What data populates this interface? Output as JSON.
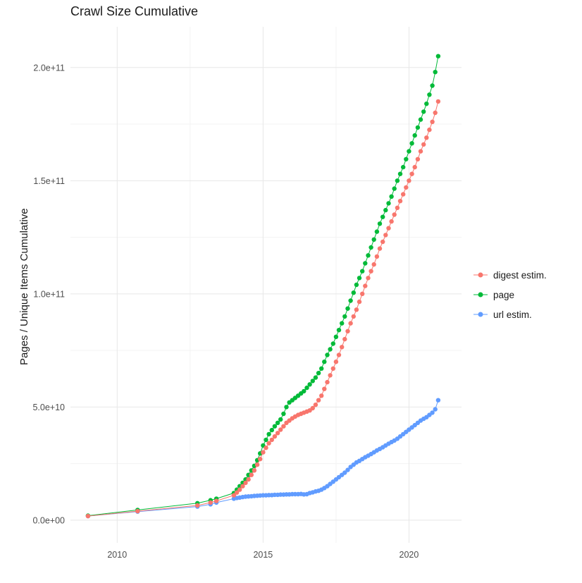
{
  "title": "Crawl Size Cumulative",
  "axes": {
    "y_label": "Pages / Unique Items Cumulative",
    "y_ticks": [
      {
        "label": "0.0e+00",
        "value_1e9": 0
      },
      {
        "label": "5.0e+10",
        "value_1e9": 50
      },
      {
        "label": "1.0e+11",
        "value_1e9": 100
      },
      {
        "label": "1.5e+11",
        "value_1e9": 150
      },
      {
        "label": "2.0e+11",
        "value_1e9": 200
      }
    ],
    "x_ticks": [
      {
        "label": "2010",
        "value": 2010
      },
      {
        "label": "2015",
        "value": 2015
      },
      {
        "label": "2020",
        "value": 2020
      }
    ]
  },
  "legend": {
    "position": "right",
    "items": [
      {
        "id": "digest",
        "label": "digest estim.",
        "color": "#F8766D"
      },
      {
        "id": "page",
        "label": "page",
        "color": "#00BA38"
      },
      {
        "id": "url",
        "label": "url estim.",
        "color": "#619CFF"
      }
    ]
  },
  "chart_data": {
    "type": "scatter",
    "style": "point+line",
    "title": "Crawl Size Cumulative",
    "xlabel": "",
    "ylabel": "Pages / Unique Items Cumulative",
    "x_unit": "year",
    "y_unit": "pages (values in units of 1e9)",
    "xlim": [
      2008.4,
      2021.8
    ],
    "ylim": [
      -10000000000.0,
      218000000000.0
    ],
    "ylim_panel_1e9": [
      -10,
      218
    ],
    "grid": "major+minor",
    "legend_position": "right",
    "x_minor": [
      2012.5,
      2017.5
    ],
    "y_minor_1e9": [
      25,
      75,
      125,
      175
    ],
    "series": [
      {
        "id": "url",
        "name": "url estim.",
        "color": "#619CFF",
        "points": [
          [
            2009.0,
            1.8
          ],
          [
            2010.7,
            3.8
          ],
          [
            2012.75,
            6.0
          ],
          [
            2013.2,
            7.0
          ],
          [
            2013.4,
            7.8
          ],
          [
            2014.0,
            9.5
          ],
          [
            2014.1,
            9.8
          ],
          [
            2014.2,
            10
          ],
          [
            2014.3,
            10.2
          ],
          [
            2014.4,
            10.4
          ],
          [
            2014.5,
            10.5
          ],
          [
            2014.6,
            10.6
          ],
          [
            2014.7,
            10.7
          ],
          [
            2014.8,
            10.8
          ],
          [
            2014.9,
            10.9
          ],
          [
            2015.0,
            11
          ],
          [
            2015.1,
            11
          ],
          [
            2015.2,
            11.1
          ],
          [
            2015.3,
            11.1
          ],
          [
            2015.4,
            11.2
          ],
          [
            2015.5,
            11.2
          ],
          [
            2015.6,
            11.3
          ],
          [
            2015.7,
            11.3
          ],
          [
            2015.8,
            11.4
          ],
          [
            2015.9,
            11.4
          ],
          [
            2016.0,
            11.5
          ],
          [
            2016.1,
            11.5
          ],
          [
            2016.2,
            11.5
          ],
          [
            2016.3,
            11.6
          ],
          [
            2016.4,
            11.4
          ],
          [
            2016.5,
            11.5
          ],
          [
            2016.6,
            12
          ],
          [
            2016.7,
            12.3
          ],
          [
            2016.8,
            12.7
          ],
          [
            2016.9,
            13
          ],
          [
            2017.0,
            13.5
          ],
          [
            2017.1,
            14.2
          ],
          [
            2017.2,
            15
          ],
          [
            2017.3,
            16
          ],
          [
            2017.4,
            17
          ],
          [
            2017.5,
            18
          ],
          [
            2017.6,
            19
          ],
          [
            2017.7,
            20
          ],
          [
            2017.8,
            21
          ],
          [
            2017.9,
            22.2
          ],
          [
            2018.0,
            23.5
          ],
          [
            2018.1,
            24.5
          ],
          [
            2018.2,
            25.5
          ],
          [
            2018.3,
            26.2
          ],
          [
            2018.4,
            27
          ],
          [
            2018.5,
            27.8
          ],
          [
            2018.6,
            28.5
          ],
          [
            2018.7,
            29.2
          ],
          [
            2018.8,
            30
          ],
          [
            2018.9,
            30.8
          ],
          [
            2019.0,
            31.5
          ],
          [
            2019.1,
            32.2
          ],
          [
            2019.2,
            33
          ],
          [
            2019.3,
            33.8
          ],
          [
            2019.4,
            34.5
          ],
          [
            2019.5,
            35.2
          ],
          [
            2019.6,
            36
          ],
          [
            2019.7,
            37
          ],
          [
            2019.8,
            38
          ],
          [
            2019.9,
            39
          ],
          [
            2020.0,
            40
          ],
          [
            2020.1,
            41
          ],
          [
            2020.2,
            42
          ],
          [
            2020.3,
            43
          ],
          [
            2020.4,
            44
          ],
          [
            2020.5,
            44.8
          ],
          [
            2020.6,
            45.5
          ],
          [
            2020.7,
            46.5
          ],
          [
            2020.8,
            47.5
          ],
          [
            2020.9,
            49
          ],
          [
            2021.0,
            53
          ]
        ]
      },
      {
        "id": "page",
        "name": "page",
        "color": "#00BA38",
        "points": [
          [
            2009.0,
            2.0
          ],
          [
            2010.7,
            4.5
          ],
          [
            2012.75,
            7.5
          ],
          [
            2013.2,
            8.8
          ],
          [
            2013.4,
            9.5
          ],
          [
            2014.0,
            12
          ],
          [
            2014.1,
            13.5
          ],
          [
            2014.2,
            15
          ],
          [
            2014.3,
            16.5
          ],
          [
            2014.4,
            18
          ],
          [
            2014.5,
            20
          ],
          [
            2014.6,
            22
          ],
          [
            2014.7,
            24
          ],
          [
            2014.8,
            26.5
          ],
          [
            2014.9,
            29.5
          ],
          [
            2015.0,
            33
          ],
          [
            2015.1,
            35.5
          ],
          [
            2015.2,
            38
          ],
          [
            2015.3,
            39.8
          ],
          [
            2015.4,
            41.5
          ],
          [
            2015.5,
            43
          ],
          [
            2015.6,
            44.5
          ],
          [
            2015.7,
            47
          ],
          [
            2015.8,
            50
          ],
          [
            2015.9,
            52
          ],
          [
            2016.0,
            53
          ],
          [
            2016.1,
            54
          ],
          [
            2016.2,
            55
          ],
          [
            2016.3,
            56
          ],
          [
            2016.4,
            57
          ],
          [
            2016.5,
            58.5
          ],
          [
            2016.6,
            60
          ],
          [
            2016.7,
            61.5
          ],
          [
            2016.8,
            63
          ],
          [
            2016.9,
            65
          ],
          [
            2017.0,
            67
          ],
          [
            2017.1,
            70
          ],
          [
            2017.2,
            73
          ],
          [
            2017.3,
            75.5
          ],
          [
            2017.4,
            78
          ],
          [
            2017.5,
            81
          ],
          [
            2017.6,
            84
          ],
          [
            2017.7,
            87
          ],
          [
            2017.8,
            90
          ],
          [
            2017.9,
            93.5
          ],
          [
            2018.0,
            97
          ],
          [
            2018.1,
            100.5
          ],
          [
            2018.2,
            104
          ],
          [
            2018.3,
            107
          ],
          [
            2018.4,
            110
          ],
          [
            2018.5,
            113.5
          ],
          [
            2018.6,
            117
          ],
          [
            2018.7,
            120.5
          ],
          [
            2018.8,
            124
          ],
          [
            2018.9,
            127.5
          ],
          [
            2019.0,
            131
          ],
          [
            2019.1,
            134
          ],
          [
            2019.2,
            137
          ],
          [
            2019.3,
            140
          ],
          [
            2019.4,
            143
          ],
          [
            2019.5,
            146.5
          ],
          [
            2019.6,
            150
          ],
          [
            2019.7,
            153
          ],
          [
            2019.8,
            156
          ],
          [
            2019.9,
            159.5
          ],
          [
            2020.0,
            163
          ],
          [
            2020.1,
            166.5
          ],
          [
            2020.2,
            170
          ],
          [
            2020.3,
            173.5
          ],
          [
            2020.4,
            177
          ],
          [
            2020.5,
            180.5
          ],
          [
            2020.6,
            184
          ],
          [
            2020.7,
            188
          ],
          [
            2020.8,
            192
          ],
          [
            2020.9,
            198
          ],
          [
            2021.0,
            205
          ]
        ]
      },
      {
        "id": "digest",
        "name": "digest estim.",
        "color": "#F8766D",
        "points": [
          [
            2009.0,
            1.8
          ],
          [
            2010.7,
            4.0
          ],
          [
            2012.75,
            6.5
          ],
          [
            2013.2,
            7.8
          ],
          [
            2013.4,
            8.5
          ],
          [
            2014.0,
            11
          ],
          [
            2014.1,
            12.2
          ],
          [
            2014.2,
            13.5
          ],
          [
            2014.3,
            15
          ],
          [
            2014.4,
            16.5
          ],
          [
            2014.5,
            18
          ],
          [
            2014.6,
            20
          ],
          [
            2014.7,
            22
          ],
          [
            2014.8,
            24.5
          ],
          [
            2014.9,
            27
          ],
          [
            2015.0,
            30
          ],
          [
            2015.1,
            32
          ],
          [
            2015.2,
            34
          ],
          [
            2015.3,
            35.5
          ],
          [
            2015.4,
            37
          ],
          [
            2015.5,
            38.5
          ],
          [
            2015.6,
            40
          ],
          [
            2015.7,
            41.5
          ],
          [
            2015.8,
            43
          ],
          [
            2015.9,
            44
          ],
          [
            2016.0,
            45
          ],
          [
            2016.1,
            45.8
          ],
          [
            2016.2,
            46.5
          ],
          [
            2016.3,
            47
          ],
          [
            2016.4,
            47.5
          ],
          [
            2016.5,
            48
          ],
          [
            2016.6,
            48.5
          ],
          [
            2016.7,
            49.5
          ],
          [
            2016.8,
            51
          ],
          [
            2016.9,
            53
          ],
          [
            2017.0,
            55
          ],
          [
            2017.1,
            58
          ],
          [
            2017.2,
            61
          ],
          [
            2017.3,
            64
          ],
          [
            2017.4,
            67
          ],
          [
            2017.5,
            70
          ],
          [
            2017.6,
            73
          ],
          [
            2017.7,
            76.5
          ],
          [
            2017.8,
            80
          ],
          [
            2017.9,
            83.5
          ],
          [
            2018.0,
            87
          ],
          [
            2018.1,
            90
          ],
          [
            2018.2,
            93
          ],
          [
            2018.3,
            96.5
          ],
          [
            2018.4,
            100
          ],
          [
            2018.5,
            103.5
          ],
          [
            2018.6,
            107
          ],
          [
            2018.7,
            110
          ],
          [
            2018.8,
            113
          ],
          [
            2018.9,
            116.5
          ],
          [
            2019.0,
            120
          ],
          [
            2019.1,
            123
          ],
          [
            2019.2,
            126
          ],
          [
            2019.3,
            129
          ],
          [
            2019.4,
            132
          ],
          [
            2019.5,
            135
          ],
          [
            2019.6,
            138
          ],
          [
            2019.7,
            141
          ],
          [
            2019.8,
            144
          ],
          [
            2019.9,
            147
          ],
          [
            2020.0,
            150
          ],
          [
            2020.1,
            153
          ],
          [
            2020.2,
            156
          ],
          [
            2020.3,
            159.5
          ],
          [
            2020.4,
            163
          ],
          [
            2020.5,
            166
          ],
          [
            2020.6,
            169
          ],
          [
            2020.7,
            172.5
          ],
          [
            2020.8,
            176
          ],
          [
            2020.9,
            180
          ],
          [
            2021.0,
            185
          ]
        ]
      }
    ]
  }
}
